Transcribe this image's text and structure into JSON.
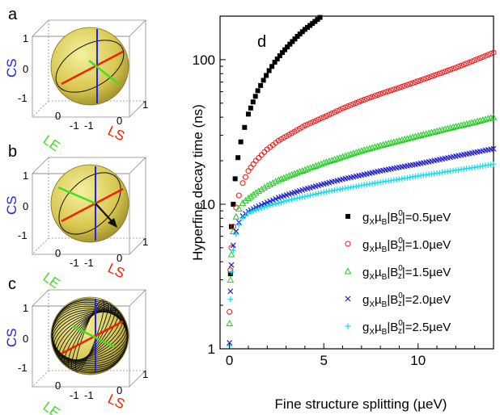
{
  "panels": [
    {
      "letter": "a",
      "axis_labels": {
        "cs": "CS",
        "le": "LE",
        "ls": "LS"
      },
      "ticks": {
        "cs_top": "1",
        "cs_mid": "0",
        "cs_bot": "-1",
        "le_far": "0",
        "le_near": "-1",
        "ls_near": "-1",
        "ls_mid": "0",
        "ls_far": "1"
      }
    },
    {
      "letter": "b",
      "axis_labels": {
        "cs": "CS",
        "le": "LE",
        "ls": "LS"
      },
      "ticks": {
        "cs_top": "1",
        "cs_mid": "0",
        "cs_bot": "-1",
        "le_far": "0",
        "le_near": "-1",
        "ls_near": "-1",
        "ls_mid": "0",
        "ls_far": "1"
      }
    },
    {
      "letter": "c",
      "axis_labels": {
        "cs": "CS",
        "le": "LE",
        "ls": "LS"
      },
      "ticks": {
        "cs_top": "1",
        "cs_mid": "0",
        "cs_bot": "-1",
        "le_far": "0",
        "le_near": "-1",
        "ls_near": "-1",
        "ls_mid": "0",
        "ls_far": "1"
      }
    }
  ],
  "colors": {
    "sphere": "#e8e070",
    "cs_axis": "#2020ff",
    "le_axis": "#44dd22",
    "ls_axis": "#ee2200",
    "trajectory": "#111111"
  },
  "chart_data": {
    "type": "scatter",
    "panel_letter": "d",
    "xlabel": "Fine structure splitting (µeV)",
    "ylabel": "Hyperfine decay time (ns)",
    "xlim": [
      -0.5,
      14
    ],
    "ylim": [
      1,
      200
    ],
    "yscale": "log",
    "xticks": [
      0,
      5,
      10
    ],
    "yticks": [
      1,
      10,
      100
    ],
    "legend_position": "bottom-right",
    "series": [
      {
        "legend_parts": {
          "a": "g",
          "b": "X",
          "c": "µ",
          "d": "B",
          "e": "|B",
          "f": "0",
          "g": "z",
          "h": "|=0.5µeV"
        },
        "color": "#000000",
        "marker": "square",
        "x": [
          0.05,
          0.1,
          0.2,
          0.3,
          0.45,
          0.6,
          0.8,
          1.0,
          1.25,
          1.5,
          1.8,
          2.1,
          2.4,
          2.8,
          3.2,
          3.6,
          4.0,
          4.4,
          4.8,
          5.3
        ],
        "y": [
          3.3,
          7,
          10,
          15,
          21,
          27,
          34,
          42,
          51,
          61,
          72,
          84,
          96,
          112,
          128,
          145,
          162,
          178,
          196,
          214
        ]
      },
      {
        "legend_parts": {
          "a": "g",
          "b": "X",
          "c": "µ",
          "d": "B",
          "e": "|B",
          "f": "0",
          "g": "z",
          "h": "|=1.0µeV"
        },
        "color": "#ee1111",
        "marker": "circle",
        "x": [
          0.0,
          0.05,
          0.1,
          0.2,
          0.35,
          0.5,
          0.7,
          1.0,
          1.4,
          2.0,
          2.6,
          3.3,
          4.0,
          5.0,
          6.0,
          7.0,
          8.0,
          9.0,
          10.0,
          11.0,
          12.0,
          13.0,
          14.0
        ],
        "y": [
          1.8,
          3.5,
          5,
          7,
          9.5,
          11.5,
          14,
          17,
          20,
          24,
          27.5,
          31,
          35,
          40,
          46,
          52,
          58,
          64,
          71,
          79,
          88,
          99,
          112
        ]
      },
      {
        "legend_parts": {
          "a": "g",
          "b": "X",
          "c": "µ",
          "d": "B",
          "e": "|B",
          "f": "0",
          "g": "z",
          "h": "|=1.5µeV"
        },
        "color": "#22cc22",
        "marker": "triangle",
        "x": [
          0.0,
          0.05,
          0.1,
          0.2,
          0.35,
          0.5,
          0.7,
          1.0,
          1.4,
          2.0,
          2.6,
          3.3,
          4.0,
          5.0,
          6.0,
          7.0,
          8.0,
          9.0,
          10.0,
          11.0,
          12.0,
          13.0,
          14.0
        ],
        "y": [
          1.5,
          3,
          4.5,
          6.5,
          8.2,
          9.3,
          10.2,
          11,
          12,
          13.4,
          14.7,
          16,
          17.3,
          19.3,
          21.3,
          23.4,
          25.5,
          27.5,
          29.7,
          32,
          34.5,
          37,
          40
        ]
      },
      {
        "legend_parts": {
          "a": "g",
          "b": "X",
          "c": "µ",
          "d": "B",
          "e": "|B",
          "f": "0",
          "g": "z",
          "h": "|=2.0µeV"
        },
        "color": "#1a1acc",
        "marker": "x",
        "x": [
          0.0,
          0.05,
          0.1,
          0.2,
          0.35,
          0.5,
          0.7,
          1.0,
          1.4,
          2.0,
          2.6,
          3.3,
          4.0,
          5.0,
          6.0,
          7.0,
          8.0,
          9.0,
          10.0,
          11.0,
          12.0,
          13.0,
          14.0
        ],
        "y": [
          1.1,
          2.5,
          3.8,
          5.2,
          6.5,
          7.5,
          8.3,
          8.9,
          9.5,
          10.3,
          11.1,
          11.9,
          12.7,
          13.8,
          14.9,
          15.9,
          17,
          18,
          19,
          20.2,
          21.5,
          22.8,
          24.2
        ]
      },
      {
        "legend_parts": {
          "a": "g",
          "b": "X",
          "c": "µ",
          "d": "B",
          "e": "|B",
          "f": "0",
          "g": "z",
          "h": "|=2.5µeV"
        },
        "color": "#11ddee",
        "marker": "plus",
        "x": [
          0.0,
          0.05,
          0.1,
          0.2,
          0.35,
          0.5,
          0.7,
          1.0,
          1.4,
          2.0,
          2.6,
          3.3,
          4.0,
          5.0,
          6.0,
          7.0,
          8.0,
          9.0,
          10.0,
          11.0,
          12.0,
          13.0,
          14.0
        ],
        "y": [
          1.05,
          2.2,
          3.4,
          4.8,
          6.2,
          7.2,
          8.0,
          8.7,
          9.1,
          9.7,
          10.2,
          10.8,
          11.3,
          12.1,
          12.8,
          13.5,
          14.2,
          14.9,
          15.7,
          16.4,
          17.2,
          18.0,
          18.9
        ]
      }
    ]
  }
}
